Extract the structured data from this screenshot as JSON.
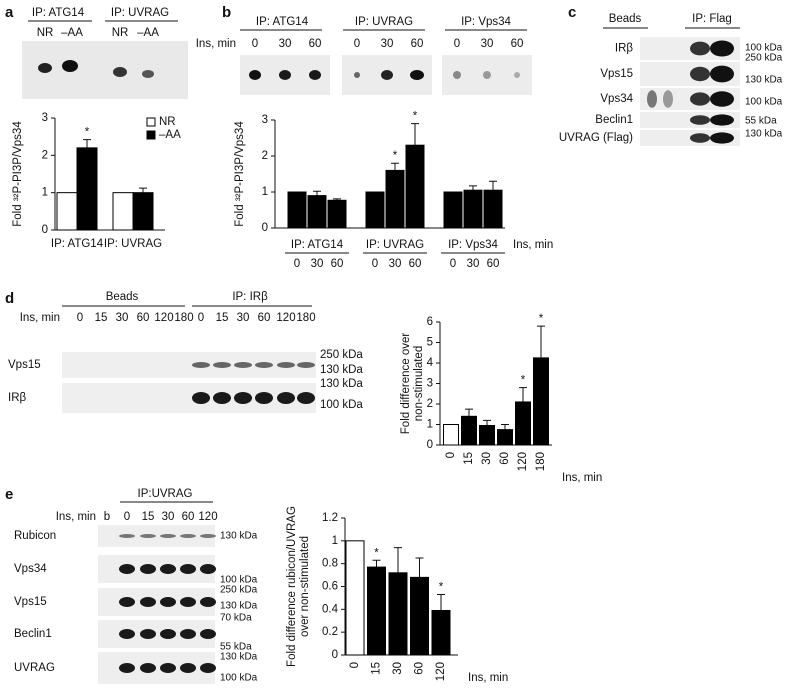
{
  "panels": {
    "a": {
      "letter": "a",
      "headers": [
        "IP: ATG14",
        "IP: UVRAG"
      ],
      "lanes": [
        "NR",
        "–AA",
        "NR",
        "–AA"
      ]
    },
    "b": {
      "letter": "b",
      "headers": [
        "IP: ATG14",
        "IP: UVRAG",
        "IP: Vps34"
      ],
      "lanes_label": "Ins, min",
      "lanes": [
        "0",
        "30",
        "60",
        "0",
        "30",
        "60",
        "0",
        "30",
        "60"
      ]
    },
    "c": {
      "letter": "c",
      "headers": [
        "Beads",
        "IP: Flag"
      ],
      "rows": [
        "IRβ",
        "Vps15",
        "Vps34",
        "Beclin1",
        "UVRAG (Flag)"
      ],
      "markers": [
        "100 kDa",
        "250 kDa",
        "130 kDa",
        "100 kDa",
        "55 kDa",
        "130 kDa"
      ]
    },
    "d": {
      "letter": "d",
      "headers": [
        "Beads",
        "IP: IRβ"
      ],
      "lanes_label": "Ins, min",
      "lanes": [
        "0",
        "15",
        "30",
        "60",
        "120",
        "180",
        "0",
        "15",
        "30",
        "60",
        "120",
        "180"
      ],
      "rows": [
        "Vps15",
        "IRβ"
      ],
      "markers": [
        "250 kDa",
        "130 kDa",
        "130 kDa",
        "100 kDa"
      ]
    },
    "e": {
      "letter": "e",
      "headers": [
        "IP:UVRAG"
      ],
      "lanes_label": "Ins, min",
      "lanes": [
        "b",
        "0",
        "15",
        "30",
        "60",
        "120"
      ],
      "rows": [
        "Rubicon",
        "Vps34",
        "Vps15",
        "Beclin1",
        "UVRAG"
      ],
      "markers": [
        "130 kDa",
        "100 kDa",
        "250 kDa",
        "130 kDa",
        "70 kDa",
        "55 kDa",
        "130 kDa",
        "100 kDa"
      ]
    }
  },
  "chart_data": [
    {
      "type": "grouped-bar",
      "ylabel": "Fold ³²P-PI3P/Vps34",
      "ylim": [
        0,
        3
      ],
      "yticks": [
        0,
        1,
        2,
        3
      ],
      "categories": [
        "IP: ATG14",
        "IP: UVRAG"
      ],
      "legend": "upper right",
      "series": [
        {
          "name": "NR",
          "color": "#ffffff",
          "values": [
            1,
            1
          ]
        },
        {
          "name": "–AA",
          "color": "#000000",
          "values": [
            2.2,
            1.0
          ],
          "errors": [
            0.22,
            0.12
          ],
          "significance": [
            "*",
            null
          ]
        }
      ]
    },
    {
      "type": "grouped-bar",
      "ylabel": "Fold ³²P-PI3P/Vps34",
      "ylim": [
        0,
        3
      ],
      "yticks": [
        0,
        1,
        2,
        3
      ],
      "categories": [
        "0",
        "30",
        "60"
      ],
      "xlabel": "Ins, min",
      "color": "#000000",
      "groups": [
        {
          "name": "IP: ATG14",
          "values": [
            1,
            0.9,
            0.77
          ],
          "errors": [
            null,
            0.12,
            0.04
          ],
          "significance": [
            null,
            null,
            null
          ]
        },
        {
          "name": "IP: UVRAG",
          "values": [
            1,
            1.6,
            2.3
          ],
          "errors": [
            null,
            0.2,
            0.6
          ],
          "significance": [
            null,
            "*",
            "*"
          ]
        },
        {
          "name": "IP: Vps34",
          "values": [
            1,
            1.05,
            1.05
          ],
          "errors": [
            null,
            0.12,
            0.25
          ],
          "significance": [
            null,
            null,
            null
          ]
        }
      ]
    },
    {
      "type": "bar",
      "ylabel": [
        "Fold difference over",
        "non-stimulated"
      ],
      "xlabel": "Ins, min",
      "ylim": [
        0,
        6
      ],
      "yticks": [
        0,
        1,
        2,
        3,
        4,
        5,
        6
      ],
      "categories": [
        "0",
        "15",
        "30",
        "60",
        "120",
        "180"
      ],
      "values": [
        1,
        1.4,
        0.95,
        0.75,
        2.1,
        4.25
      ],
      "errors": [
        null,
        0.35,
        0.25,
        0.25,
        0.7,
        1.55
      ],
      "colors": [
        "#ffffff",
        "#000000",
        "#000000",
        "#000000",
        "#000000",
        "#000000"
      ],
      "significance": [
        null,
        null,
        null,
        null,
        "*",
        "*"
      ]
    },
    {
      "type": "bar",
      "ylabel": [
        "Fold difference rubicon/UVRAG",
        "over non-stimulated"
      ],
      "xlabel": "Ins, min",
      "ylim": [
        0,
        1.2
      ],
      "yticks": [
        0,
        0.2,
        0.4,
        0.6,
        0.8,
        1,
        1.2
      ],
      "categories": [
        "0",
        "15",
        "30",
        "60",
        "120"
      ],
      "values": [
        1,
        0.77,
        0.72,
        0.68,
        0.39
      ],
      "errors": [
        null,
        0.06,
        0.22,
        0.17,
        0.14
      ],
      "colors": [
        "#ffffff",
        "#000000",
        "#000000",
        "#000000",
        "#000000"
      ],
      "significance": [
        null,
        "*",
        null,
        null,
        "*"
      ]
    }
  ]
}
